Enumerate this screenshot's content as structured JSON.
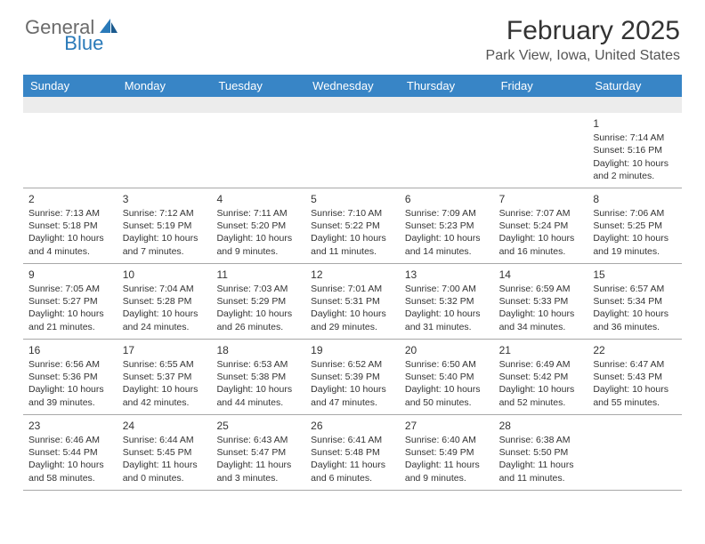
{
  "logo": {
    "text1": "General",
    "text2": "Blue"
  },
  "title": "February 2025",
  "location": "Park View, Iowa, United States",
  "colors": {
    "header_bg": "#3885c6",
    "header_text": "#ffffff",
    "blank_bg": "#ececec",
    "border": "#a8a8a8",
    "text": "#333333",
    "logo_gray": "#6b6b6b",
    "logo_blue": "#2a7ab9"
  },
  "day_names": [
    "Sunday",
    "Monday",
    "Tuesday",
    "Wednesday",
    "Thursday",
    "Friday",
    "Saturday"
  ],
  "weeks": [
    [
      null,
      null,
      null,
      null,
      null,
      null,
      {
        "n": "1",
        "sr": "7:14 AM",
        "ss": "5:16 PM",
        "dl": "10 hours and 2 minutes."
      }
    ],
    [
      {
        "n": "2",
        "sr": "7:13 AM",
        "ss": "5:18 PM",
        "dl": "10 hours and 4 minutes."
      },
      {
        "n": "3",
        "sr": "7:12 AM",
        "ss": "5:19 PM",
        "dl": "10 hours and 7 minutes."
      },
      {
        "n": "4",
        "sr": "7:11 AM",
        "ss": "5:20 PM",
        "dl": "10 hours and 9 minutes."
      },
      {
        "n": "5",
        "sr": "7:10 AM",
        "ss": "5:22 PM",
        "dl": "10 hours and 11 minutes."
      },
      {
        "n": "6",
        "sr": "7:09 AM",
        "ss": "5:23 PM",
        "dl": "10 hours and 14 minutes."
      },
      {
        "n": "7",
        "sr": "7:07 AM",
        "ss": "5:24 PM",
        "dl": "10 hours and 16 minutes."
      },
      {
        "n": "8",
        "sr": "7:06 AM",
        "ss": "5:25 PM",
        "dl": "10 hours and 19 minutes."
      }
    ],
    [
      {
        "n": "9",
        "sr": "7:05 AM",
        "ss": "5:27 PM",
        "dl": "10 hours and 21 minutes."
      },
      {
        "n": "10",
        "sr": "7:04 AM",
        "ss": "5:28 PM",
        "dl": "10 hours and 24 minutes."
      },
      {
        "n": "11",
        "sr": "7:03 AM",
        "ss": "5:29 PM",
        "dl": "10 hours and 26 minutes."
      },
      {
        "n": "12",
        "sr": "7:01 AM",
        "ss": "5:31 PM",
        "dl": "10 hours and 29 minutes."
      },
      {
        "n": "13",
        "sr": "7:00 AM",
        "ss": "5:32 PM",
        "dl": "10 hours and 31 minutes."
      },
      {
        "n": "14",
        "sr": "6:59 AM",
        "ss": "5:33 PM",
        "dl": "10 hours and 34 minutes."
      },
      {
        "n": "15",
        "sr": "6:57 AM",
        "ss": "5:34 PM",
        "dl": "10 hours and 36 minutes."
      }
    ],
    [
      {
        "n": "16",
        "sr": "6:56 AM",
        "ss": "5:36 PM",
        "dl": "10 hours and 39 minutes."
      },
      {
        "n": "17",
        "sr": "6:55 AM",
        "ss": "5:37 PM",
        "dl": "10 hours and 42 minutes."
      },
      {
        "n": "18",
        "sr": "6:53 AM",
        "ss": "5:38 PM",
        "dl": "10 hours and 44 minutes."
      },
      {
        "n": "19",
        "sr": "6:52 AM",
        "ss": "5:39 PM",
        "dl": "10 hours and 47 minutes."
      },
      {
        "n": "20",
        "sr": "6:50 AM",
        "ss": "5:40 PM",
        "dl": "10 hours and 50 minutes."
      },
      {
        "n": "21",
        "sr": "6:49 AM",
        "ss": "5:42 PM",
        "dl": "10 hours and 52 minutes."
      },
      {
        "n": "22",
        "sr": "6:47 AM",
        "ss": "5:43 PM",
        "dl": "10 hours and 55 minutes."
      }
    ],
    [
      {
        "n": "23",
        "sr": "6:46 AM",
        "ss": "5:44 PM",
        "dl": "10 hours and 58 minutes."
      },
      {
        "n": "24",
        "sr": "6:44 AM",
        "ss": "5:45 PM",
        "dl": "11 hours and 0 minutes."
      },
      {
        "n": "25",
        "sr": "6:43 AM",
        "ss": "5:47 PM",
        "dl": "11 hours and 3 minutes."
      },
      {
        "n": "26",
        "sr": "6:41 AM",
        "ss": "5:48 PM",
        "dl": "11 hours and 6 minutes."
      },
      {
        "n": "27",
        "sr": "6:40 AM",
        "ss": "5:49 PM",
        "dl": "11 hours and 9 minutes."
      },
      {
        "n": "28",
        "sr": "6:38 AM",
        "ss": "5:50 PM",
        "dl": "11 hours and 11 minutes."
      },
      null
    ]
  ],
  "labels": {
    "sunrise": "Sunrise:",
    "sunset": "Sunset:",
    "daylight": "Daylight:"
  }
}
